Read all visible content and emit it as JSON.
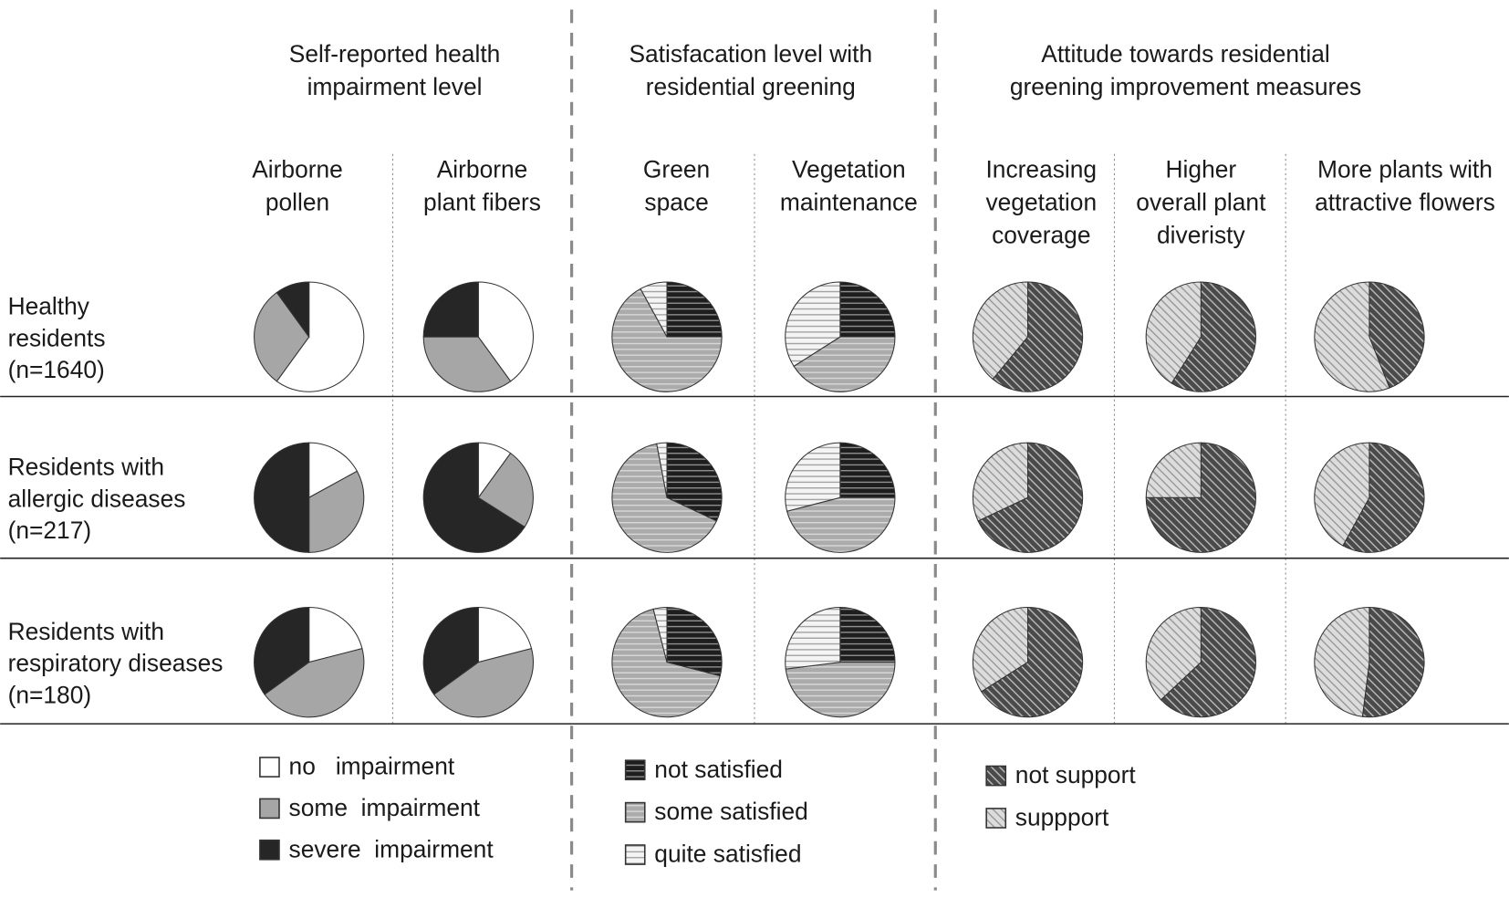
{
  "row_labels": [
    [
      "Healthy",
      "residents",
      "(n=1640)"
    ],
    [
      "Residents with",
      "allergic diseases",
      "(n=217)"
    ],
    [
      "Residents with",
      "respiratory diseases",
      "(n=180)"
    ]
  ],
  "chart_data": [
    {
      "type": "pie",
      "title": [
        "Self-reported health",
        "impairment level"
      ],
      "categories": [
        "no   impairment",
        "some  impairment",
        "severe  impairment"
      ],
      "colors": [
        "#ffffff",
        "#a6a6a6",
        "#262626"
      ],
      "fill": "solid",
      "columns": [
        {
          "title": [
            "Airborne",
            "pollen"
          ],
          "values": [
            [
              60,
              30,
              10
            ],
            [
              17,
              33,
              50
            ],
            [
              21,
              44,
              35
            ]
          ]
        },
        {
          "title": [
            "Airborne",
            "plant fibers"
          ],
          "values": [
            [
              40,
              35,
              25
            ],
            [
              10,
              24,
              66
            ],
            [
              21,
              44,
              35
            ]
          ]
        }
      ]
    },
    {
      "type": "pie",
      "title": [
        "Satisfacation level with",
        "residential greening"
      ],
      "categories": [
        "not satisfied",
        "some satisfied",
        "quite satisfied"
      ],
      "colors": [
        "#1e1e1e",
        "#ababab",
        "#f4f4f4"
      ],
      "fill": "horizontal",
      "columns": [
        {
          "title": [
            "Green",
            "space"
          ],
          "values": [
            [
              25,
              67,
              8
            ],
            [
              32,
              65,
              3
            ],
            [
              29,
              67,
              4
            ]
          ]
        },
        {
          "title": [
            "Vegetation",
            "maintenance"
          ],
          "values": [
            [
              25,
              41,
              34
            ],
            [
              25,
              46,
              29
            ],
            [
              25,
              48,
              27
            ]
          ]
        }
      ]
    },
    {
      "type": "pie",
      "title": [
        "Attitude towards residential",
        "greening improvement measures"
      ],
      "categories": [
        "not support",
        "suppport"
      ],
      "colors": [
        "#4a4a4a",
        "#dcdcdc"
      ],
      "fill": "diagonal",
      "columns": [
        {
          "title": [
            "Increasing",
            "vegetation",
            "coverage"
          ],
          "values": [
            [
              61,
              39
            ],
            [
              68,
              32
            ],
            [
              66,
              34
            ]
          ]
        },
        {
          "title": [
            "Higher",
            "overall plant",
            "diveristy"
          ],
          "values": [
            [
              59,
              41
            ],
            [
              75,
              25
            ],
            [
              63,
              37
            ]
          ]
        },
        {
          "title": [
            "More plants with",
            "attractive flowers"
          ],
          "values": [
            [
              44,
              56
            ],
            [
              58,
              42
            ],
            [
              52,
              48
            ]
          ]
        }
      ]
    }
  ]
}
